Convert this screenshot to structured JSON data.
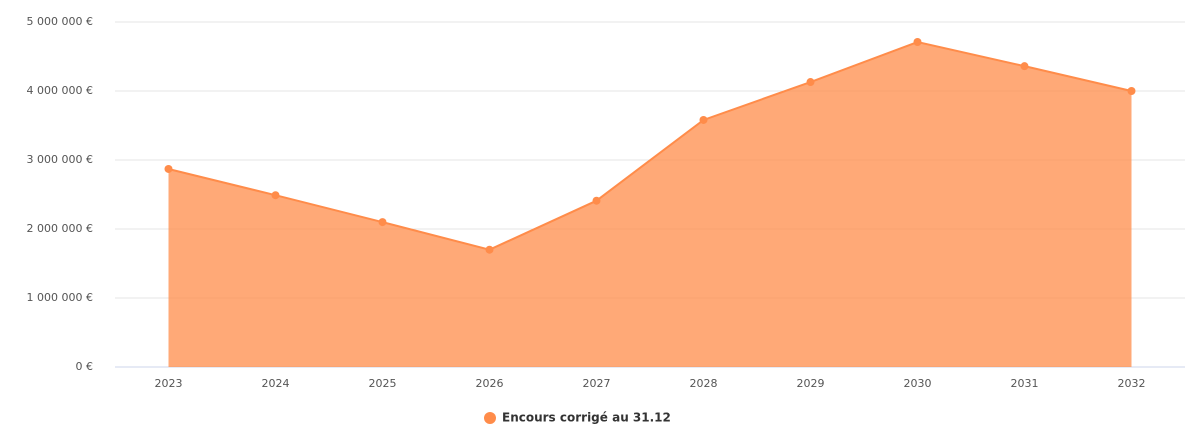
{
  "chart_data": {
    "type": "area",
    "categories": [
      "2023",
      "2024",
      "2025",
      "2026",
      "2027",
      "2028",
      "2029",
      "2030",
      "2031",
      "2032"
    ],
    "series": [
      {
        "name": "Encours corrigé au 31.12",
        "color": "#ff8c4a",
        "values": [
          2870000,
          2490000,
          2100000,
          1700000,
          2410000,
          3580000,
          4130000,
          4710000,
          4360000,
          4000000
        ]
      }
    ],
    "ylim": [
      0,
      5000000
    ],
    "yticks": [
      {
        "value": 0,
        "label": "0 €"
      },
      {
        "value": 1000000,
        "label": "1 000 000 €"
      },
      {
        "value": 2000000,
        "label": "2 000 000 €"
      },
      {
        "value": 3000000,
        "label": "3 000 000 €"
      },
      {
        "value": 4000000,
        "label": "4 000 000 €"
      },
      {
        "value": 5000000,
        "label": "5 000 000 €"
      }
    ],
    "grid": true,
    "legend": "bottom"
  }
}
